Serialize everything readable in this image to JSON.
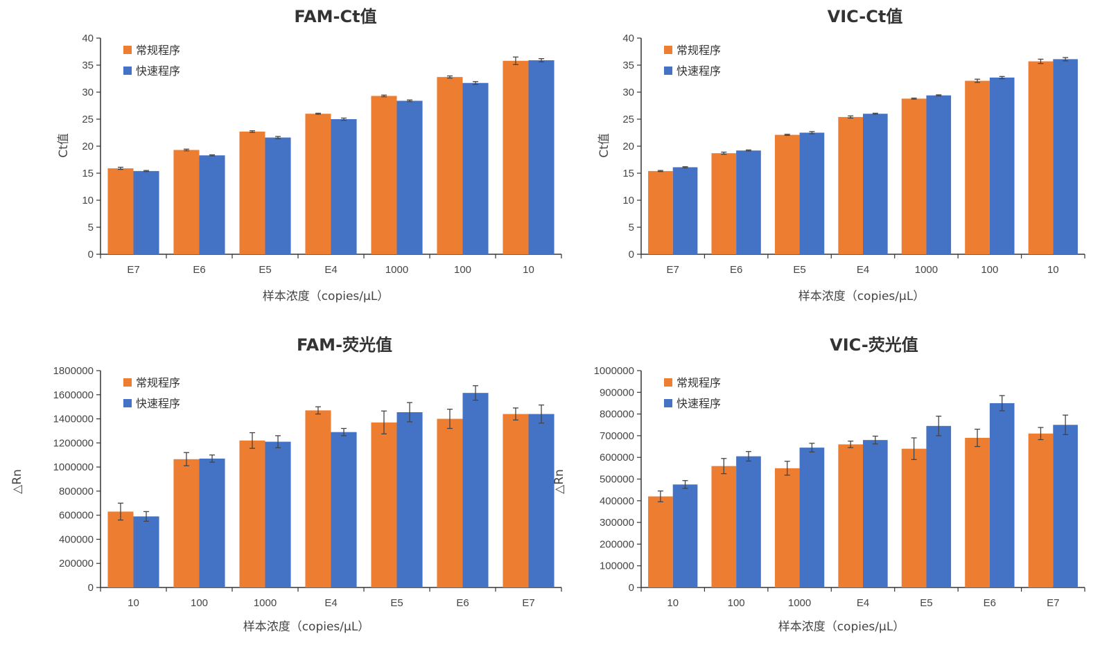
{
  "colors": {
    "orange": "#ed7d31",
    "blue": "#4472c4",
    "axis": "#333333",
    "error": "#444444"
  },
  "chart_data": [
    {
      "type": "bar",
      "title": "FAM-Ct值",
      "xlabel": "样本浓度（copies/μL）",
      "ylabel": "Ct值",
      "categories": [
        "E7",
        "E6",
        "E5",
        "E4",
        "1000",
        "100",
        "10"
      ],
      "ylim": [
        0,
        40
      ],
      "yticks": [
        0,
        5,
        10,
        15,
        20,
        25,
        30,
        35,
        40
      ],
      "ytick_labels": [
        "0",
        "5",
        "10",
        "15",
        "20",
        "25",
        "30",
        "35",
        "40"
      ],
      "legend_position": "top-left",
      "grid": false,
      "series": [
        {
          "name": "常规程序",
          "color": "#ed7d31",
          "values": [
            15.9,
            19.3,
            22.7,
            26.0,
            29.3,
            32.8,
            35.8
          ],
          "errors": [
            0.2,
            0.15,
            0.15,
            0.1,
            0.15,
            0.2,
            0.7
          ]
        },
        {
          "name": "快速程序",
          "color": "#4472c4",
          "values": [
            15.4,
            18.3,
            21.6,
            25.0,
            28.4,
            31.7,
            35.9
          ],
          "errors": [
            0.1,
            0.1,
            0.2,
            0.2,
            0.15,
            0.25,
            0.3
          ]
        }
      ]
    },
    {
      "type": "bar",
      "title": "VIC-Ct值",
      "xlabel": "样本浓度（copies/μL）",
      "ylabel": "Ct值",
      "categories": [
        "E7",
        "E6",
        "E5",
        "E4",
        "1000",
        "100",
        "10"
      ],
      "ylim": [
        0,
        40
      ],
      "yticks": [
        0,
        5,
        10,
        15,
        20,
        25,
        30,
        35,
        40
      ],
      "ytick_labels": [
        "0",
        "5",
        "10",
        "15",
        "20",
        "25",
        "30",
        "35",
        "40"
      ],
      "legend_position": "top-left",
      "grid": false,
      "series": [
        {
          "name": "常规程序",
          "color": "#ed7d31",
          "values": [
            15.4,
            18.7,
            22.1,
            25.4,
            28.8,
            32.1,
            35.7
          ],
          "errors": [
            0.1,
            0.2,
            0.1,
            0.2,
            0.1,
            0.3,
            0.4
          ]
        },
        {
          "name": "快速程序",
          "color": "#4472c4",
          "values": [
            16.1,
            19.2,
            22.5,
            26.0,
            29.4,
            32.7,
            36.1
          ],
          "errors": [
            0.1,
            0.1,
            0.2,
            0.1,
            0.1,
            0.2,
            0.3
          ]
        }
      ]
    },
    {
      "type": "bar",
      "title": "FAM-荧光值",
      "xlabel": "样本浓度（copies/μL）",
      "ylabel": "△Rn",
      "categories": [
        "10",
        "100",
        "1000",
        "E4",
        "E5",
        "E6",
        "E7"
      ],
      "ylim": [
        0,
        1800000
      ],
      "yticks": [
        0,
        200000,
        400000,
        600000,
        800000,
        1000000,
        1200000,
        1400000,
        1600000,
        1800000
      ],
      "ytick_labels": [
        "0",
        "200000",
        "400000",
        "600000",
        "800000",
        "1000000",
        "1200000",
        "1400000",
        "1600000",
        "1800000"
      ],
      "legend_position": "top-left",
      "grid": false,
      "series": [
        {
          "name": "常规程序",
          "color": "#ed7d31",
          "values": [
            630000,
            1065000,
            1220000,
            1470000,
            1370000,
            1400000,
            1440000
          ],
          "errors": [
            70000,
            55000,
            65000,
            30000,
            95000,
            80000,
            50000
          ]
        },
        {
          "name": "快速程序",
          "color": "#4472c4",
          "values": [
            590000,
            1070000,
            1210000,
            1290000,
            1455000,
            1615000,
            1440000
          ],
          "errors": [
            40000,
            30000,
            50000,
            30000,
            80000,
            60000,
            75000
          ]
        }
      ]
    },
    {
      "type": "bar",
      "title": "VIC-荧光值",
      "xlabel": "样本浓度（copies/μL）",
      "ylabel": "△Rn",
      "categories": [
        "10",
        "100",
        "1000",
        "E4",
        "E5",
        "E6",
        "E7"
      ],
      "ylim": [
        0,
        1000000
      ],
      "yticks": [
        0,
        100000,
        200000,
        300000,
        400000,
        500000,
        600000,
        700000,
        800000,
        900000,
        1000000
      ],
      "ytick_labels": [
        "0",
        "100000",
        "200000",
        "300000",
        "400000",
        "500000",
        "600000",
        "700000",
        "800000",
        "900000",
        "1000000"
      ],
      "legend_position": "top-left",
      "grid": false,
      "series": [
        {
          "name": "常规程序",
          "color": "#ed7d31",
          "values": [
            420000,
            560000,
            550000,
            660000,
            640000,
            690000,
            710000
          ],
          "errors": [
            25000,
            35000,
            32000,
            15000,
            50000,
            40000,
            28000
          ]
        },
        {
          "name": "快速程序",
          "color": "#4472c4",
          "values": [
            475000,
            605000,
            645000,
            680000,
            745000,
            850000,
            750000
          ],
          "errors": [
            18000,
            22000,
            20000,
            18000,
            45000,
            35000,
            45000
          ]
        }
      ]
    }
  ]
}
